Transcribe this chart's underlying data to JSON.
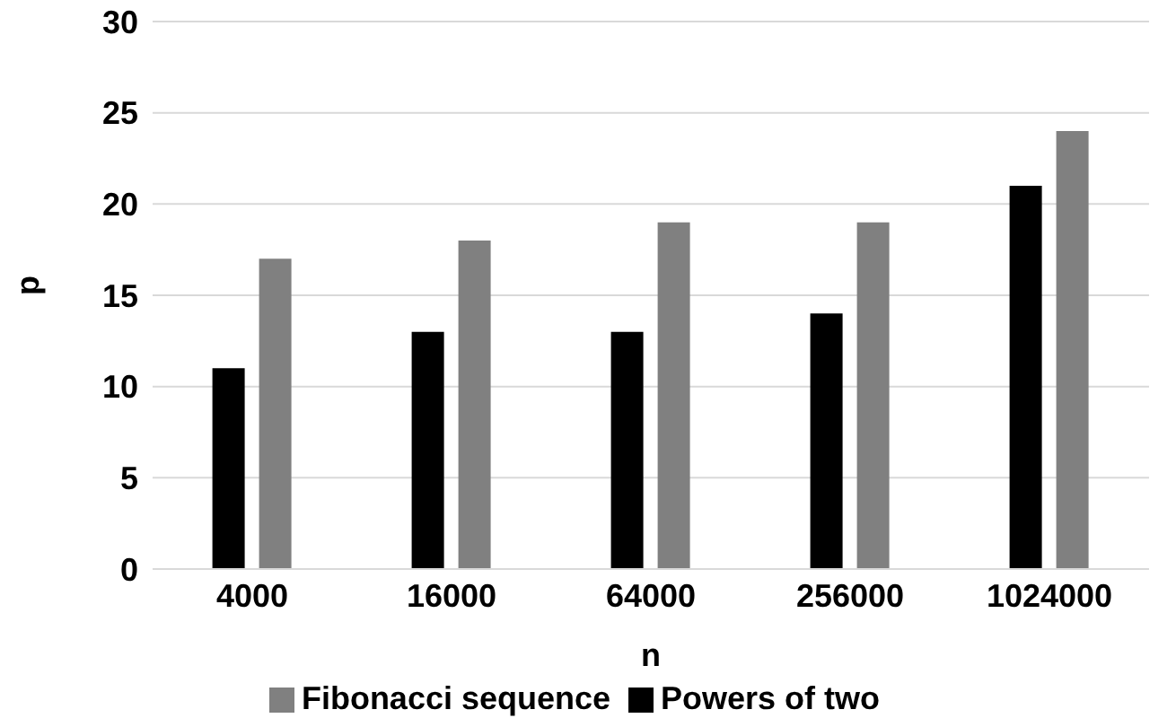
{
  "chart_data": {
    "type": "bar",
    "xlabel": "n",
    "ylabel": "p",
    "categories": [
      "4000",
      "16000",
      "64000",
      "256000",
      "1024000"
    ],
    "series": [
      {
        "name": "Powers of two",
        "color": "#000000",
        "values": [
          11,
          13,
          13,
          14,
          21
        ]
      },
      {
        "name": "Fibonacci sequence",
        "color": "#808080",
        "values": [
          17,
          18,
          19,
          19,
          24
        ]
      }
    ],
    "ylim": [
      0,
      30
    ],
    "yticks": [
      0,
      5,
      10,
      15,
      20,
      25,
      30
    ],
    "grid": "y",
    "legend": "bottom"
  }
}
